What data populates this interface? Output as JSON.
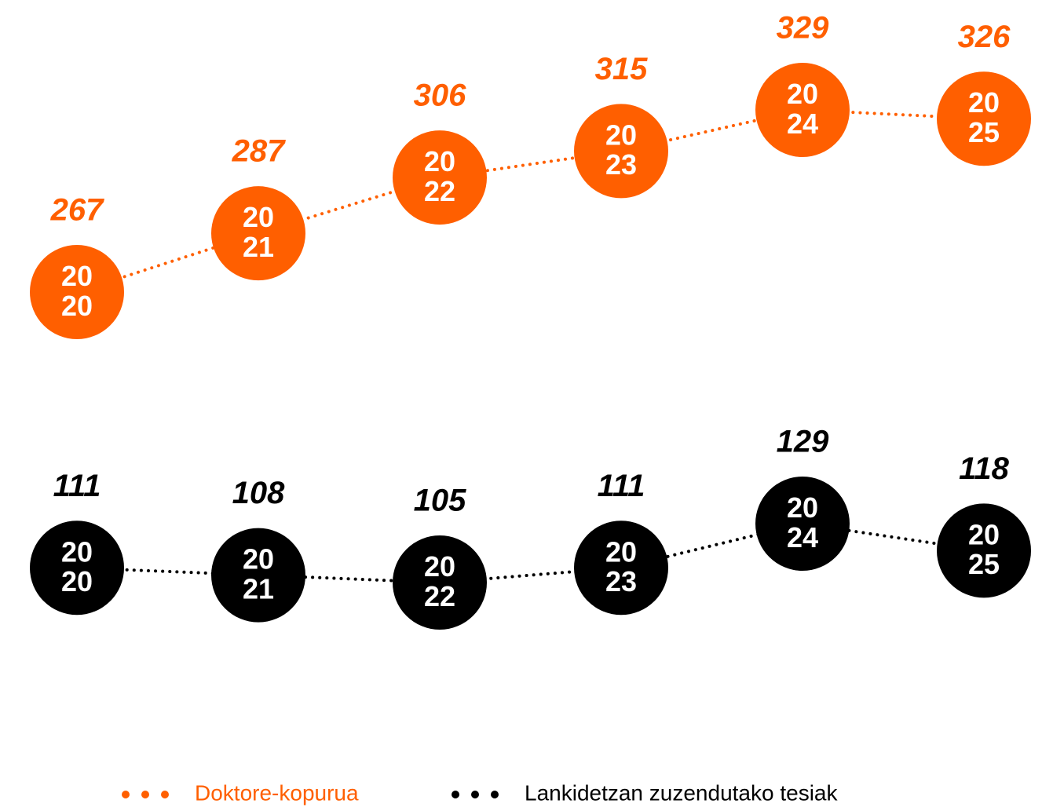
{
  "chart_data": {
    "type": "line",
    "categories": [
      "2020",
      "2021",
      "2022",
      "2023",
      "2024",
      "2025"
    ],
    "series": [
      {
        "name": "Doktore-kopurua",
        "color": "#ff5f00",
        "values": [
          267,
          287,
          306,
          315,
          329,
          326
        ]
      },
      {
        "name": "Lankidetzan zuzendutako tesiak",
        "color": "#000000",
        "values": [
          111,
          108,
          105,
          111,
          129,
          118
        ]
      }
    ],
    "legend": "bottom"
  }
}
